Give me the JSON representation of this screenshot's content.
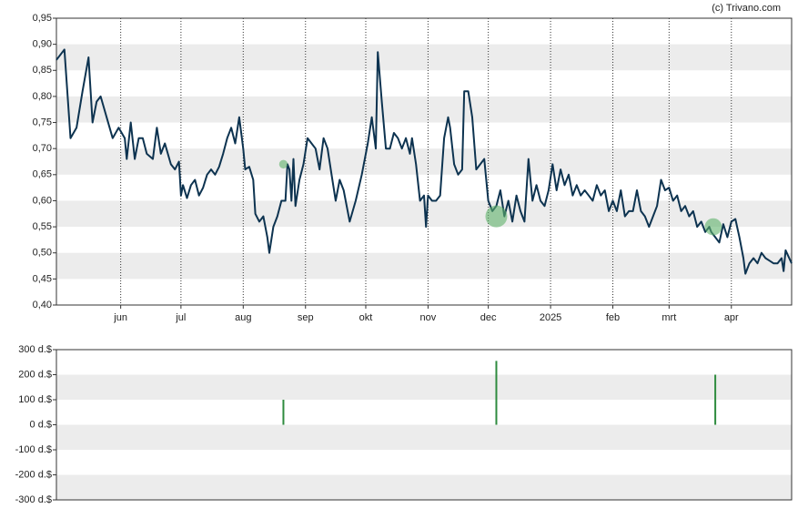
{
  "credit": "(c) Trivano.com",
  "chart_data": [
    {
      "type": "line",
      "color": "#0d3350",
      "xlim": [
        -32,
        334
      ],
      "ylim": [
        0.4,
        0.95
      ],
      "xticks": [
        {
          "value": 0,
          "label": "jun"
        },
        {
          "value": 30,
          "label": "jul"
        },
        {
          "value": 61,
          "label": "aug"
        },
        {
          "value": 92,
          "label": "sep"
        },
        {
          "value": 122,
          "label": "okt"
        },
        {
          "value": 153,
          "label": "nov"
        },
        {
          "value": 183,
          "label": "dec"
        },
        {
          "value": 214,
          "label": "2025"
        },
        {
          "value": 245,
          "label": "feb"
        },
        {
          "value": 273,
          "label": "mrt"
        },
        {
          "value": 304,
          "label": "apr"
        }
      ],
      "yticks": [
        {
          "value": 0.4,
          "label": "0,40"
        },
        {
          "value": 0.45,
          "label": "0,45"
        },
        {
          "value": 0.5,
          "label": "0,50"
        },
        {
          "value": 0.55,
          "label": "0,55"
        },
        {
          "value": 0.6,
          "label": "0,60"
        },
        {
          "value": 0.65,
          "label": "0,65"
        },
        {
          "value": 0.7,
          "label": "0,70"
        },
        {
          "value": 0.75,
          "label": "0,75"
        },
        {
          "value": 0.8,
          "label": "0,80"
        },
        {
          "value": 0.85,
          "label": "0,85"
        },
        {
          "value": 0.9,
          "label": "0,90"
        },
        {
          "value": 0.95,
          "label": "0,95"
        }
      ],
      "x": [
        -32,
        -28,
        -25,
        -22,
        -19,
        -16,
        -14,
        -12,
        -10,
        -7,
        -4,
        -1,
        2,
        3,
        5,
        7,
        9,
        11,
        13,
        16,
        18,
        20,
        22,
        25,
        27,
        29,
        30,
        31,
        33,
        35,
        37,
        39,
        41,
        43,
        45,
        47,
        49,
        51,
        53,
        55,
        57,
        59,
        61,
        62,
        64,
        66,
        67,
        69,
        71,
        73,
        74,
        76,
        78,
        80,
        82,
        83,
        84,
        85,
        86,
        87,
        89,
        91,
        93,
        95,
        97,
        99,
        101,
        103,
        105,
        107,
        109,
        111,
        114,
        117,
        120,
        123,
        125,
        127,
        128,
        130,
        132,
        134,
        136,
        138,
        140,
        142,
        144,
        145,
        147,
        149,
        151,
        152,
        153,
        155,
        157,
        159,
        161,
        163,
        164,
        166,
        168,
        170,
        171,
        173,
        175,
        177,
        179,
        181,
        183,
        185,
        187,
        189,
        191,
        193,
        195,
        197,
        199,
        201,
        203,
        205,
        207,
        209,
        211,
        213,
        215,
        217,
        219,
        221,
        223,
        225,
        227,
        229,
        231,
        233,
        235,
        237,
        239,
        241,
        243,
        245,
        247,
        249,
        251,
        253,
        255,
        257,
        259,
        261,
        263,
        265,
        267,
        269,
        271,
        273,
        275,
        277,
        279,
        281,
        283,
        285,
        287,
        289,
        291,
        293,
        294,
        296,
        298,
        300,
        302,
        304,
        306,
        308,
        310,
        311,
        313,
        315,
        317,
        319,
        321,
        323,
        325,
        327,
        329,
        330,
        331,
        334
      ],
      "values": [
        0.87,
        0.89,
        0.72,
        0.74,
        0.81,
        0.875,
        0.75,
        0.79,
        0.8,
        0.76,
        0.72,
        0.74,
        0.72,
        0.68,
        0.75,
        0.68,
        0.72,
        0.72,
        0.69,
        0.68,
        0.74,
        0.69,
        0.71,
        0.67,
        0.66,
        0.675,
        0.61,
        0.63,
        0.605,
        0.63,
        0.64,
        0.61,
        0.625,
        0.65,
        0.66,
        0.65,
        0.665,
        0.69,
        0.72,
        0.74,
        0.71,
        0.76,
        0.7,
        0.66,
        0.665,
        0.64,
        0.575,
        0.56,
        0.57,
        0.53,
        0.5,
        0.55,
        0.57,
        0.6,
        0.6,
        0.67,
        0.66,
        0.6,
        0.68,
        0.59,
        0.64,
        0.67,
        0.72,
        0.71,
        0.7,
        0.66,
        0.72,
        0.7,
        0.65,
        0.6,
        0.64,
        0.62,
        0.56,
        0.6,
        0.65,
        0.71,
        0.76,
        0.7,
        0.885,
        0.79,
        0.7,
        0.7,
        0.73,
        0.72,
        0.7,
        0.72,
        0.69,
        0.72,
        0.67,
        0.6,
        0.61,
        0.55,
        0.61,
        0.6,
        0.6,
        0.61,
        0.72,
        0.76,
        0.74,
        0.67,
        0.65,
        0.66,
        0.81,
        0.81,
        0.76,
        0.66,
        0.67,
        0.68,
        0.6,
        0.58,
        0.59,
        0.62,
        0.57,
        0.6,
        0.56,
        0.61,
        0.58,
        0.56,
        0.68,
        0.6,
        0.63,
        0.6,
        0.59,
        0.62,
        0.67,
        0.62,
        0.66,
        0.63,
        0.65,
        0.61,
        0.63,
        0.61,
        0.62,
        0.61,
        0.6,
        0.63,
        0.61,
        0.62,
        0.58,
        0.6,
        0.58,
        0.62,
        0.57,
        0.58,
        0.58,
        0.62,
        0.58,
        0.57,
        0.55,
        0.57,
        0.59,
        0.64,
        0.62,
        0.625,
        0.6,
        0.61,
        0.58,
        0.59,
        0.57,
        0.58,
        0.55,
        0.56,
        0.54,
        0.55,
        0.54,
        0.53,
        0.52,
        0.555,
        0.53,
        0.56,
        0.565,
        0.53,
        0.49,
        0.46,
        0.48,
        0.49,
        0.48,
        0.5,
        0.49,
        0.485,
        0.48,
        0.48,
        0.49,
        0.465,
        0.505,
        0.48
      ],
      "markers": {
        "color": "#5fb36b",
        "x": [
          81,
          187,
          295
        ],
        "values": [
          0.67,
          0.57,
          0.55
        ]
      }
    },
    {
      "type": "bar",
      "color": "#2e8b3e",
      "xlim": [
        -32,
        334
      ],
      "ylim": [
        -300,
        300
      ],
      "yticks": [
        {
          "value": -300,
          "label": "-300 d.$"
        },
        {
          "value": -200,
          "label": "-200 d.$"
        },
        {
          "value": -100,
          "label": "-100 d.$"
        },
        {
          "value": 0,
          "label": "0 d.$"
        },
        {
          "value": 100,
          "label": "100 d.$"
        },
        {
          "value": 200,
          "label": "200 d.$"
        },
        {
          "value": 300,
          "label": "300 d.$"
        }
      ],
      "x": [
        81,
        187,
        296
      ],
      "values": [
        100,
        255,
        200
      ]
    }
  ]
}
